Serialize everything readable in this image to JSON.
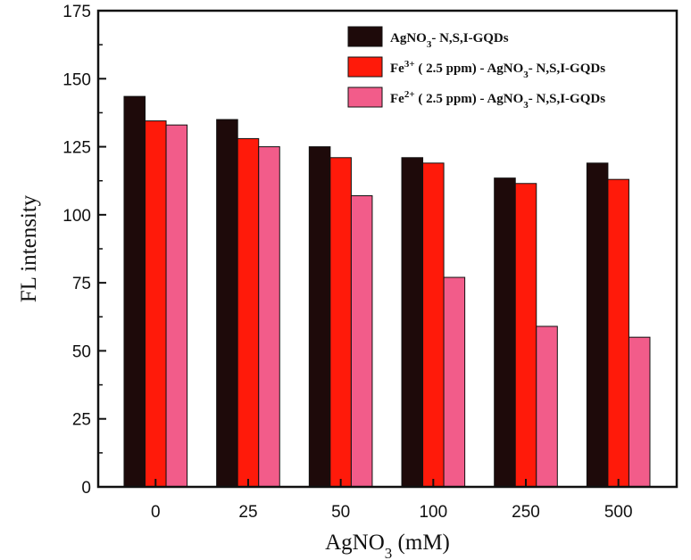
{
  "chart_data": {
    "type": "bar",
    "xlabel": "AgNO3 (mM)",
    "xlabel_base": "AgNO",
    "xlabel_sub": "3",
    "xlabel_unit": " (mM)",
    "ylabel": "FL intensity",
    "ylim": [
      0,
      175
    ],
    "yticks": [
      0,
      25,
      50,
      75,
      100,
      125,
      150,
      175
    ],
    "categories": [
      "0",
      "25",
      "50",
      "100",
      "250",
      "500"
    ],
    "series": [
      {
        "name": "AgNO3- N,S,I-GQDs",
        "color": "#1e0a0a",
        "values": [
          143.5,
          135,
          125,
          121,
          113.5,
          119
        ],
        "legend": {
          "sup": "",
          "mid": "",
          "pre": "AgNO",
          "sub": "3",
          "post": "- N,S,I-GQDs"
        }
      },
      {
        "name": "Fe3+ ( 2.5 ppm) - AgNO3- N,S,I-GQDs",
        "color": "#ff1a0a",
        "values": [
          134.5,
          128,
          121,
          119,
          111.5,
          113
        ],
        "legend": {
          "sup": "3+",
          "mid": " ( 2.5 ppm) - ",
          "pre": "Fe",
          "sub": "3",
          "post": "- N,S,I-GQDs",
          "base2": "AgNO"
        }
      },
      {
        "name": "Fe2+ ( 2.5 ppm) - AgNO3- N,S,I-GQDs",
        "color": "#f25c8a",
        "values": [
          133,
          125,
          107,
          77,
          59,
          55
        ],
        "legend": {
          "sup": "2+",
          "mid": " ( 2.5 ppm) - ",
          "pre": "Fe",
          "sub": "3",
          "post": "- N,S,I-GQDs",
          "base2": "AgNO"
        }
      }
    ]
  }
}
